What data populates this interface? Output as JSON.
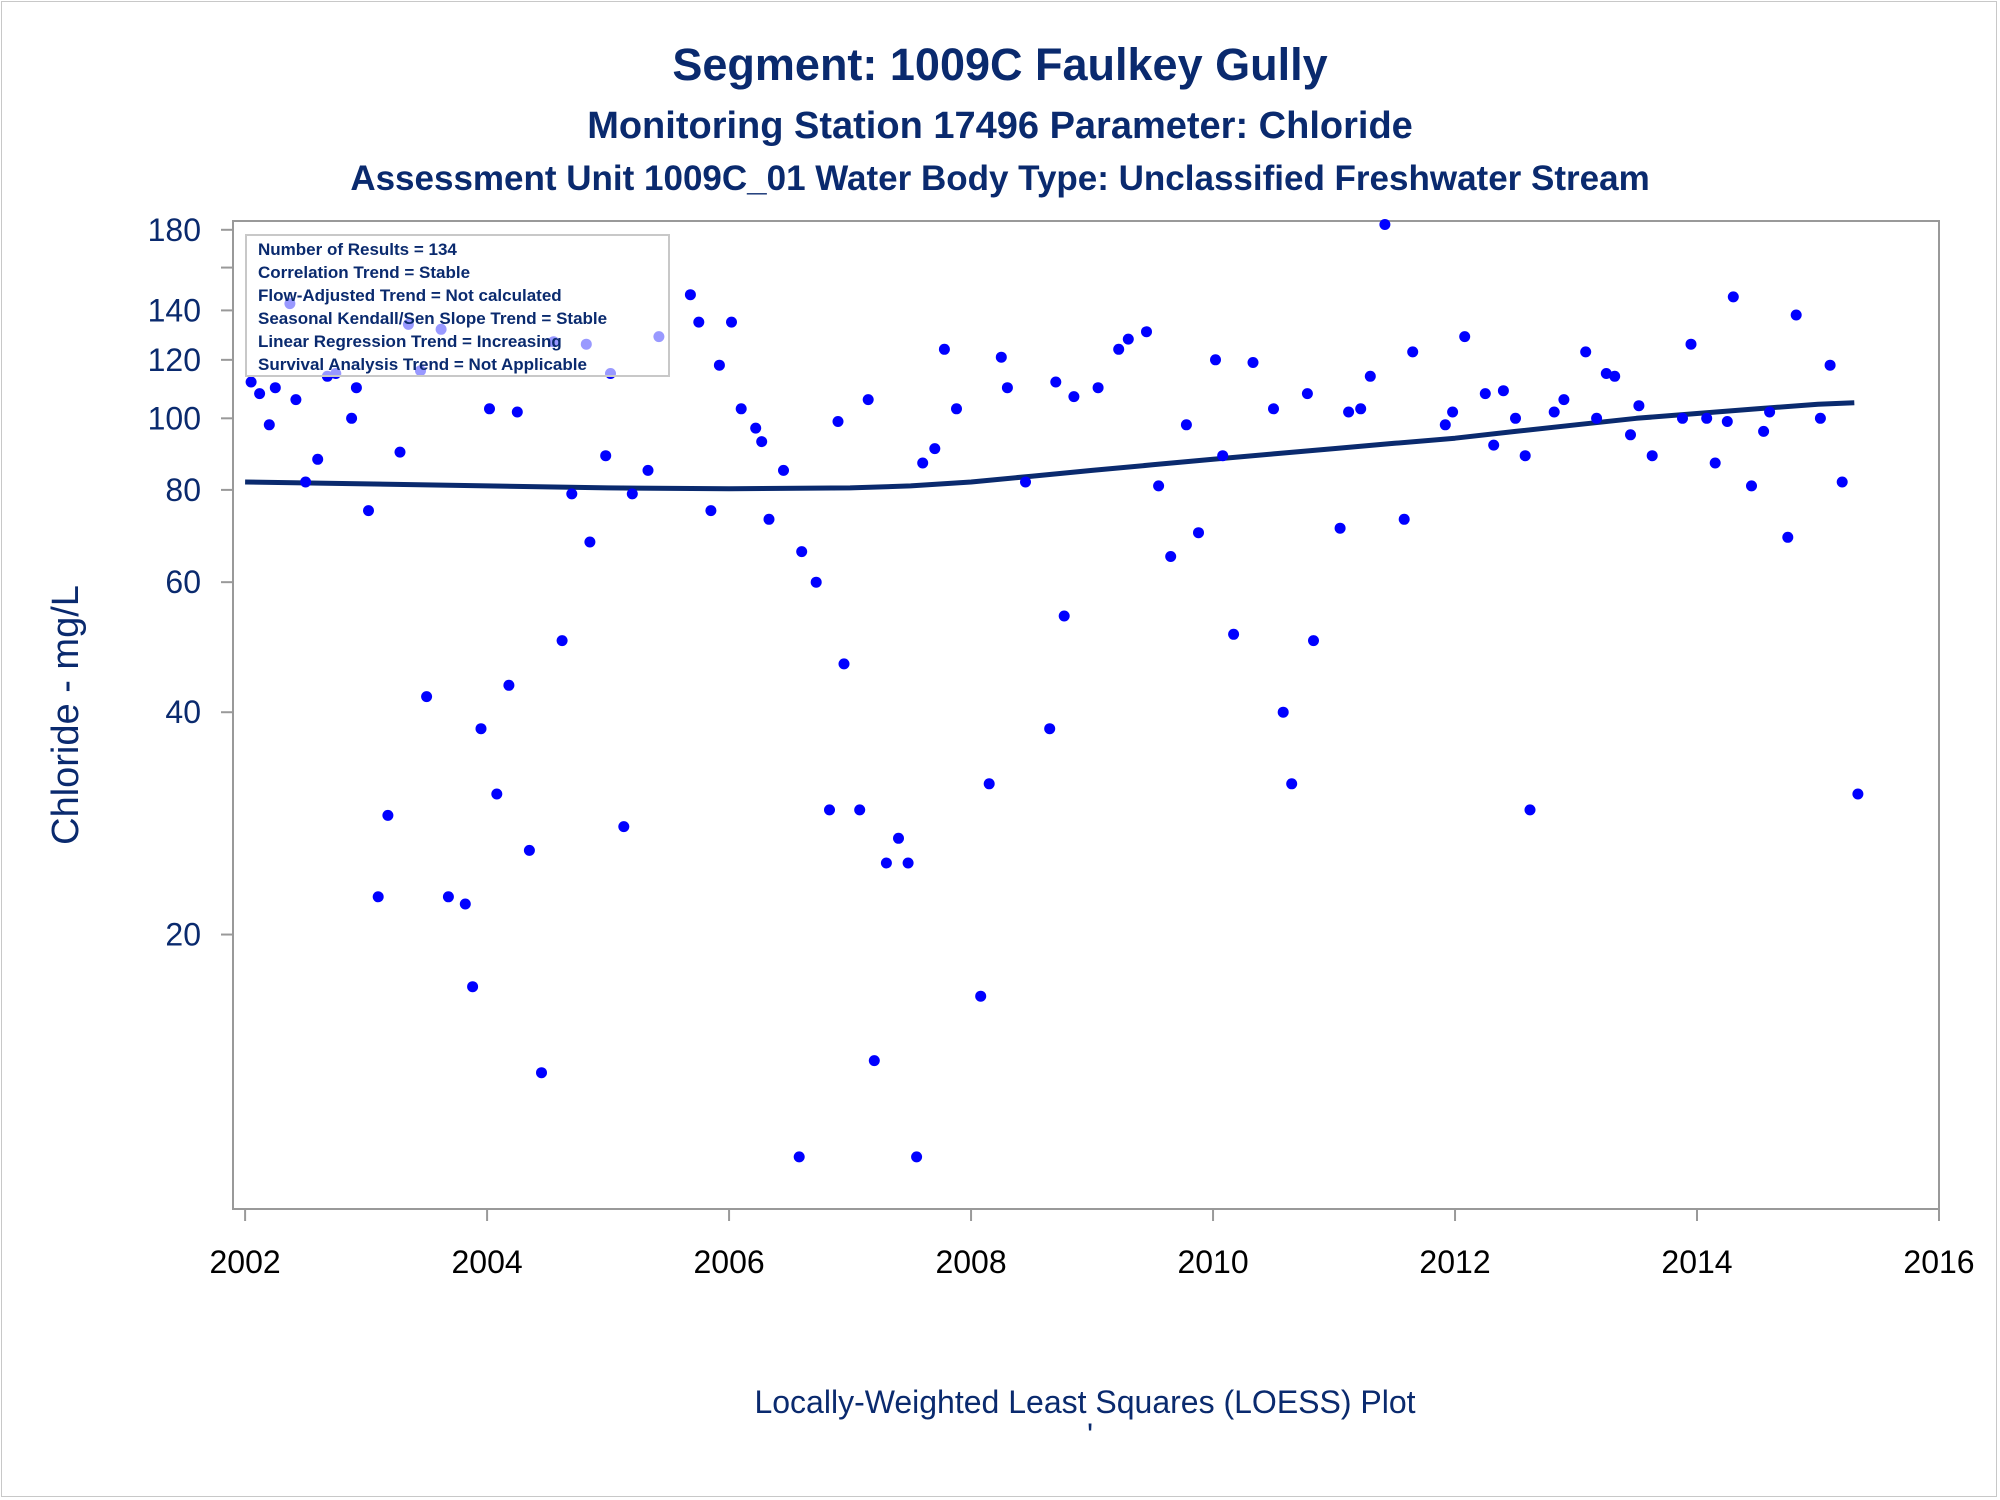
{
  "chart_data": {
    "type": "scatter",
    "title": "Segment: 1009C  Faulkey Gully",
    "subtitle": "Monitoring Station 17496 Parameter: Chloride",
    "subtitle2": "Assessment Unit 1009C_01   Water Body Type: Unclassified Freshwater Stream",
    "ylabel": "Chloride - mg/L",
    "footnote": "Locally-Weighted Least Squares (LOESS) Plot",
    "footnote_mark": "'",
    "yscale": "log",
    "ylim": [
      8.5,
      185
    ],
    "xlim": [
      2001.9,
      2016
    ],
    "yticks": [
      20,
      40,
      60,
      80,
      100,
      120,
      140,
      180
    ],
    "yminor": [
      160
    ],
    "xticks": [
      2002,
      2004,
      2006,
      2008,
      2010,
      2012,
      2014,
      2016
    ],
    "colors": {
      "points": "#0000ff",
      "trend": "#0a2a6e",
      "text": "#0a2a6e",
      "axis": "#999999"
    },
    "legend": {
      "position": "top-left",
      "lines": [
        "Number of Results = 134",
        "Correlation Trend = Stable",
        "Flow-Adjusted Trend = Not calculated",
        "Seasonal Kendall/Sen Slope Trend = Stable",
        "Linear Regression Trend = Increasing",
        "Survival Analysis Trend = Not Applicable"
      ]
    },
    "trend_line": {
      "name": "LOESS",
      "x": [
        2002.0,
        2003.0,
        2004.0,
        2005.0,
        2006.0,
        2007.0,
        2007.5,
        2008.0,
        2008.5,
        2009.0,
        2009.5,
        2010.0,
        2010.5,
        2011.0,
        2011.5,
        2012.0,
        2012.5,
        2013.0,
        2013.5,
        2014.0,
        2014.5,
        2015.0,
        2015.3
      ],
      "y": [
        82,
        81.5,
        81,
        80.5,
        80.3,
        80.5,
        81,
        82,
        83.5,
        85,
        86.5,
        88,
        89.5,
        91,
        92.5,
        94,
        96,
        98,
        100,
        101.5,
        103,
        104.5,
        105
      ]
    },
    "points": [
      {
        "x": 2002.05,
        "y": 112
      },
      {
        "x": 2002.12,
        "y": 108
      },
      {
        "x": 2002.2,
        "y": 98
      },
      {
        "x": 2002.25,
        "y": 110
      },
      {
        "x": 2002.37,
        "y": 143
      },
      {
        "x": 2002.42,
        "y": 106
      },
      {
        "x": 2002.5,
        "y": 82
      },
      {
        "x": 2002.6,
        "y": 88
      },
      {
        "x": 2002.68,
        "y": 114
      },
      {
        "x": 2002.75,
        "y": 115
      },
      {
        "x": 2002.88,
        "y": 100
      },
      {
        "x": 2002.92,
        "y": 110
      },
      {
        "x": 2003.02,
        "y": 75
      },
      {
        "x": 2003.1,
        "y": 22.5
      },
      {
        "x": 2003.18,
        "y": 29
      },
      {
        "x": 2003.28,
        "y": 90
      },
      {
        "x": 2003.35,
        "y": 134
      },
      {
        "x": 2003.45,
        "y": 116
      },
      {
        "x": 2003.5,
        "y": 42
      },
      {
        "x": 2003.62,
        "y": 132
      },
      {
        "x": 2003.68,
        "y": 22.5
      },
      {
        "x": 2003.82,
        "y": 22
      },
      {
        "x": 2003.88,
        "y": 17
      },
      {
        "x": 2003.95,
        "y": 38
      },
      {
        "x": 2004.02,
        "y": 103
      },
      {
        "x": 2004.08,
        "y": 31
      },
      {
        "x": 2004.18,
        "y": 43.5
      },
      {
        "x": 2004.25,
        "y": 102
      },
      {
        "x": 2004.35,
        "y": 26
      },
      {
        "x": 2004.45,
        "y": 13
      },
      {
        "x": 2004.55,
        "y": 127
      },
      {
        "x": 2004.62,
        "y": 50
      },
      {
        "x": 2004.7,
        "y": 79
      },
      {
        "x": 2004.82,
        "y": 126
      },
      {
        "x": 2004.85,
        "y": 68
      },
      {
        "x": 2004.98,
        "y": 89
      },
      {
        "x": 2005.02,
        "y": 115
      },
      {
        "x": 2005.13,
        "y": 28
      },
      {
        "x": 2005.2,
        "y": 79
      },
      {
        "x": 2005.33,
        "y": 85
      },
      {
        "x": 2005.42,
        "y": 129
      },
      {
        "x": 2005.68,
        "y": 147
      },
      {
        "x": 2005.75,
        "y": 135
      },
      {
        "x": 2005.85,
        "y": 75
      },
      {
        "x": 2005.92,
        "y": 118
      },
      {
        "x": 2006.02,
        "y": 135
      },
      {
        "x": 2006.1,
        "y": 103
      },
      {
        "x": 2006.22,
        "y": 97
      },
      {
        "x": 2006.27,
        "y": 93
      },
      {
        "x": 2006.33,
        "y": 73
      },
      {
        "x": 2006.45,
        "y": 85
      },
      {
        "x": 2006.58,
        "y": 10
      },
      {
        "x": 2006.6,
        "y": 66
      },
      {
        "x": 2006.72,
        "y": 60
      },
      {
        "x": 2006.83,
        "y": 29.5
      },
      {
        "x": 2006.9,
        "y": 99
      },
      {
        "x": 2006.95,
        "y": 46.5
      },
      {
        "x": 2007.08,
        "y": 29.5
      },
      {
        "x": 2007.15,
        "y": 106
      },
      {
        "x": 2007.2,
        "y": 13.5
      },
      {
        "x": 2007.3,
        "y": 25
      },
      {
        "x": 2007.4,
        "y": 27
      },
      {
        "x": 2007.48,
        "y": 25
      },
      {
        "x": 2007.55,
        "y": 10
      },
      {
        "x": 2007.6,
        "y": 87
      },
      {
        "x": 2007.7,
        "y": 91
      },
      {
        "x": 2007.78,
        "y": 124
      },
      {
        "x": 2007.88,
        "y": 103
      },
      {
        "x": 2008.08,
        "y": 16.5
      },
      {
        "x": 2008.15,
        "y": 32
      },
      {
        "x": 2008.25,
        "y": 121
      },
      {
        "x": 2008.3,
        "y": 110
      },
      {
        "x": 2008.45,
        "y": 82
      },
      {
        "x": 2008.65,
        "y": 38
      },
      {
        "x": 2008.7,
        "y": 112
      },
      {
        "x": 2008.77,
        "y": 54
      },
      {
        "x": 2008.85,
        "y": 107
      },
      {
        "x": 2009.05,
        "y": 110
      },
      {
        "x": 2009.22,
        "y": 124
      },
      {
        "x": 2009.3,
        "y": 128
      },
      {
        "x": 2009.45,
        "y": 131
      },
      {
        "x": 2009.55,
        "y": 81
      },
      {
        "x": 2009.65,
        "y": 65
      },
      {
        "x": 2009.78,
        "y": 98
      },
      {
        "x": 2009.88,
        "y": 70
      },
      {
        "x": 2010.02,
        "y": 120
      },
      {
        "x": 2010.08,
        "y": 89
      },
      {
        "x": 2010.17,
        "y": 51
      },
      {
        "x": 2010.33,
        "y": 119
      },
      {
        "x": 2010.5,
        "y": 103
      },
      {
        "x": 2010.58,
        "y": 40
      },
      {
        "x": 2010.65,
        "y": 32
      },
      {
        "x": 2010.78,
        "y": 108
      },
      {
        "x": 2010.83,
        "y": 50
      },
      {
        "x": 2011.05,
        "y": 71
      },
      {
        "x": 2011.12,
        "y": 102
      },
      {
        "x": 2011.22,
        "y": 103
      },
      {
        "x": 2011.3,
        "y": 114
      },
      {
        "x": 2011.42,
        "y": 183
      },
      {
        "x": 2011.58,
        "y": 73
      },
      {
        "x": 2011.65,
        "y": 123
      },
      {
        "x": 2011.92,
        "y": 98
      },
      {
        "x": 2011.98,
        "y": 102
      },
      {
        "x": 2012.08,
        "y": 129
      },
      {
        "x": 2012.25,
        "y": 108
      },
      {
        "x": 2012.32,
        "y": 92
      },
      {
        "x": 2012.4,
        "y": 109
      },
      {
        "x": 2012.5,
        "y": 100
      },
      {
        "x": 2012.58,
        "y": 89
      },
      {
        "x": 2012.62,
        "y": 29.5
      },
      {
        "x": 2012.82,
        "y": 102
      },
      {
        "x": 2012.9,
        "y": 106
      },
      {
        "x": 2013.08,
        "y": 123
      },
      {
        "x": 2013.17,
        "y": 100
      },
      {
        "x": 2013.25,
        "y": 115
      },
      {
        "x": 2013.32,
        "y": 114
      },
      {
        "x": 2013.45,
        "y": 95
      },
      {
        "x": 2013.52,
        "y": 104
      },
      {
        "x": 2013.63,
        "y": 89
      },
      {
        "x": 2013.88,
        "y": 100
      },
      {
        "x": 2013.95,
        "y": 126
      },
      {
        "x": 2014.08,
        "y": 100
      },
      {
        "x": 2014.15,
        "y": 87
      },
      {
        "x": 2014.25,
        "y": 99
      },
      {
        "x": 2014.3,
        "y": 146
      },
      {
        "x": 2014.45,
        "y": 81
      },
      {
        "x": 2014.55,
        "y": 96
      },
      {
        "x": 2014.6,
        "y": 102
      },
      {
        "x": 2014.75,
        "y": 69
      },
      {
        "x": 2014.82,
        "y": 138
      },
      {
        "x": 2015.02,
        "y": 100
      },
      {
        "x": 2015.1,
        "y": 118
      },
      {
        "x": 2015.2,
        "y": 82
      },
      {
        "x": 2015.33,
        "y": 31
      }
    ]
  }
}
